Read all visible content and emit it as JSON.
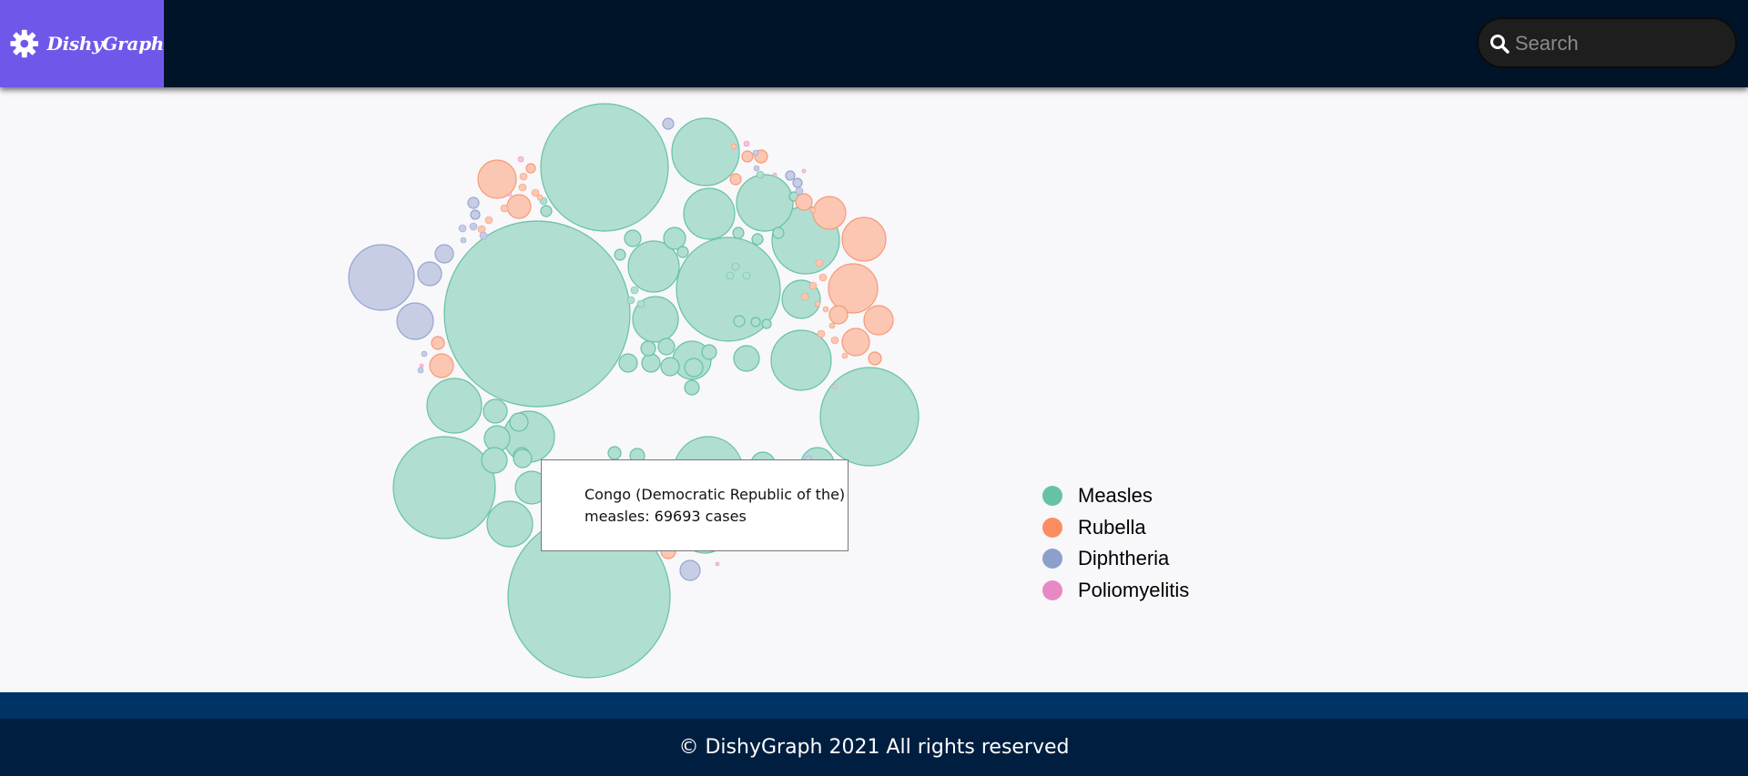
{
  "app": {
    "name": "DishyGraph"
  },
  "header": {
    "logo_text": "DishyGraph",
    "logo_icon": "gear-icon",
    "search": {
      "placeholder": "Search",
      "value": "",
      "icon": "search-icon"
    }
  },
  "colors": {
    "header_bg": "#001429",
    "logo_bg": "#6f58e9",
    "footer_band": "#003366",
    "footer_bg": "#001f40",
    "measles": "#66c2a5",
    "rubella": "#fc8d62",
    "diphtheria": "#8da0cb",
    "poliomyelitis": "#e78ac3"
  },
  "tooltip": {
    "line1": "Congo (Democratic Republic of the)",
    "line2": "measles: 69693 cases"
  },
  "legend": [
    {
      "label": "Measles",
      "color": "#66c2a5"
    },
    {
      "label": "Rubella",
      "color": "#fc8d62"
    },
    {
      "label": "Diphtheria",
      "color": "#8da0cb"
    },
    {
      "label": "Poliomyelitis",
      "color": "#e78ac3"
    }
  ],
  "footer": {
    "text": "© DishyGraph 2021 All rights reserved"
  }
}
